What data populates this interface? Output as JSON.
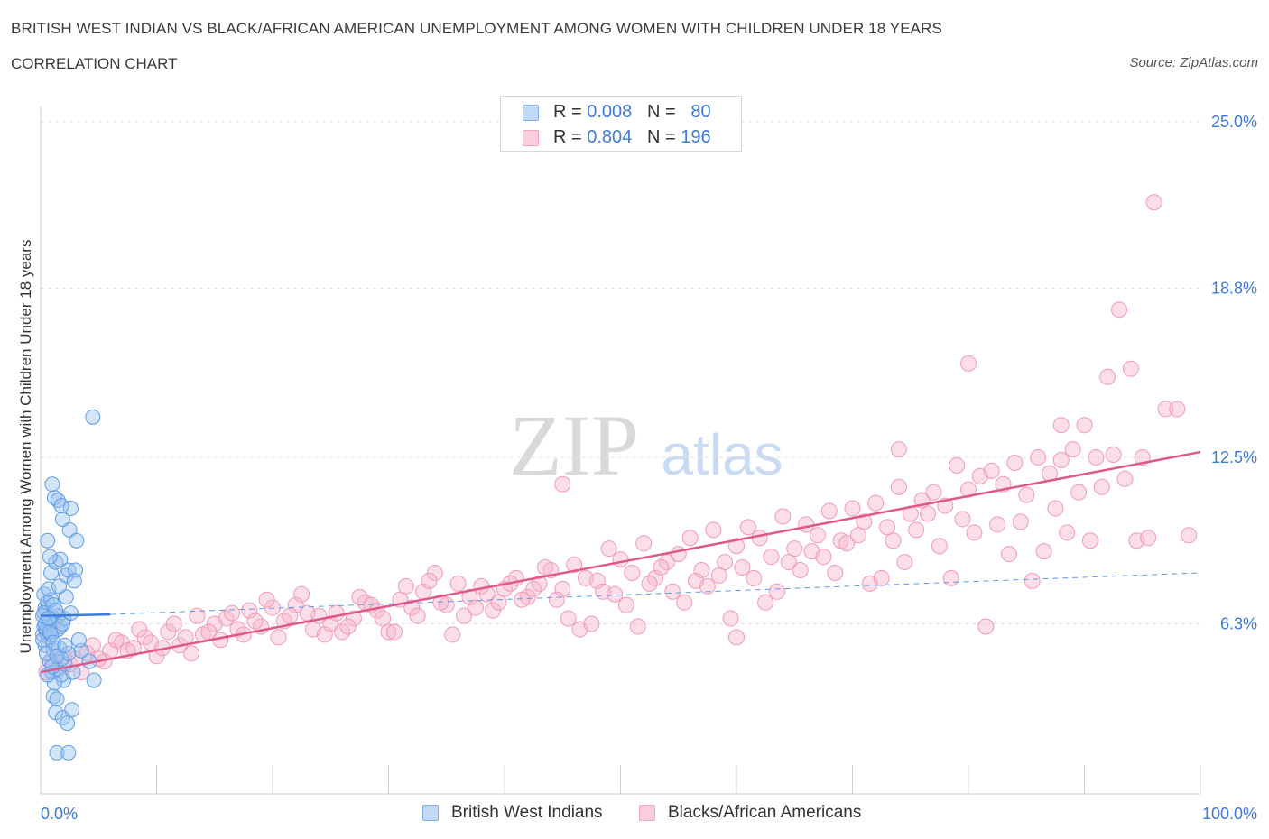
{
  "header": {
    "title": "BRITISH WEST INDIAN VS BLACK/AFRICAN AMERICAN UNEMPLOYMENT AMONG WOMEN WITH CHILDREN UNDER 18 YEARS",
    "subtitle": "CORRELATION CHART",
    "source": "Source: ZipAtlas.com"
  },
  "watermark": {
    "zip": "ZIP",
    "atlas": "atlas"
  },
  "legend": {
    "rows": [
      {
        "r_label": "R = ",
        "r_value": "0.008",
        "n_label": "N = ",
        "n_value": "80",
        "color": "#7fb0ec"
      },
      {
        "r_label": "R = ",
        "r_value": "0.804",
        "n_label": "N = ",
        "n_value": "196",
        "color": "#f4a3bf"
      }
    ]
  },
  "bottom_legend": [
    {
      "label": "British West Indians",
      "color": "#7fb0ec"
    },
    {
      "label": "Blacks/African Americans",
      "color": "#f4a3bf"
    }
  ],
  "chart_data": {
    "type": "scatter",
    "title": "BRITISH WEST INDIAN VS BLACK/AFRICAN AMERICAN UNEMPLOYMENT AMONG WOMEN WITH CHILDREN UNDER 18 YEARS",
    "xlabel": "",
    "ylabel": "Unemployment Among Women with Children Under 18 years",
    "xlim": [
      0,
      100
    ],
    "ylim": [
      0,
      25
    ],
    "x_tick_labels": [
      "0.0%",
      "100.0%"
    ],
    "y_ticks": [
      6.3,
      12.5,
      18.8,
      25.0
    ],
    "y_tick_labels": [
      "6.3%",
      "12.5%",
      "18.8%",
      "25.0%"
    ],
    "grid": true,
    "legend_position": "top-center",
    "colors": {
      "blue": "#3d7bd6",
      "pink": "#e0588a",
      "blue_fill": "#9cc3ef",
      "pink_fill": "#f6b5cb"
    },
    "series": [
      {
        "name": "British West Indians",
        "color": "#7fb0ec",
        "trend": {
          "x": [
            0,
            6
          ],
          "y": [
            6.6,
            6.65
          ],
          "dashed_extension_to": [
            100,
            8.2
          ]
        },
        "points": [
          [
            0.3,
            6.2
          ],
          [
            0.5,
            6.5
          ],
          [
            0.2,
            5.9
          ],
          [
            0.8,
            6.3
          ],
          [
            0.4,
            6.9
          ],
          [
            0.6,
            7.1
          ],
          [
            0.3,
            7.4
          ],
          [
            0.9,
            7.2
          ],
          [
            0.5,
            6.0
          ],
          [
            0.7,
            5.8
          ],
          [
            1.2,
            6.4
          ],
          [
            1.5,
            6.6
          ],
          [
            0.4,
            5.5
          ],
          [
            0.2,
            5.7
          ],
          [
            0.8,
            4.9
          ],
          [
            1.0,
            4.5
          ],
          [
            1.4,
            4.6
          ],
          [
            2.0,
            4.2
          ],
          [
            1.8,
            4.4
          ],
          [
            1.1,
            5.3
          ],
          [
            1.6,
            5.4
          ],
          [
            0.9,
            8.2
          ],
          [
            1.3,
            8.6
          ],
          [
            2.2,
            8.1
          ],
          [
            1.7,
            8.7
          ],
          [
            2.4,
            8.3
          ],
          [
            3.0,
            8.3
          ],
          [
            0.8,
            8.8
          ],
          [
            0.6,
            9.4
          ],
          [
            2.5,
            9.8
          ],
          [
            3.1,
            9.4
          ],
          [
            1.9,
            10.2
          ],
          [
            1.2,
            11.0
          ],
          [
            2.6,
            10.6
          ],
          [
            1.0,
            11.5
          ],
          [
            1.5,
            10.9
          ],
          [
            1.8,
            10.7
          ],
          [
            4.5,
            14.0
          ],
          [
            1.1,
            3.6
          ],
          [
            1.4,
            3.5
          ],
          [
            2.7,
            3.1
          ],
          [
            1.3,
            3.0
          ],
          [
            1.9,
            2.8
          ],
          [
            2.3,
            2.6
          ],
          [
            1.4,
            1.5
          ],
          [
            2.4,
            1.5
          ],
          [
            0.5,
            6.1
          ],
          [
            0.9,
            6.4
          ],
          [
            1.7,
            6.2
          ],
          [
            2.0,
            6.5
          ],
          [
            0.3,
            6.7
          ],
          [
            1.1,
            7.0
          ],
          [
            0.7,
            7.6
          ],
          [
            1.5,
            6.1
          ],
          [
            2.1,
            4.8
          ],
          [
            2.8,
            4.5
          ],
          [
            3.5,
            5.3
          ],
          [
            4.2,
            4.9
          ],
          [
            4.6,
            4.2
          ],
          [
            1.2,
            4.1
          ],
          [
            0.6,
            4.4
          ],
          [
            1.8,
            5.0
          ],
          [
            0.4,
            6.3
          ],
          [
            0.9,
            5.9
          ],
          [
            1.3,
            6.8
          ],
          [
            2.2,
            7.3
          ],
          [
            2.9,
            7.9
          ],
          [
            1.6,
            7.7
          ],
          [
            0.2,
            6.6
          ],
          [
            0.8,
            6.0
          ],
          [
            3.3,
            5.7
          ],
          [
            1.1,
            5.6
          ],
          [
            2.4,
            5.2
          ],
          [
            1.0,
            4.7
          ],
          [
            0.5,
            5.2
          ],
          [
            1.9,
            6.3
          ],
          [
            2.6,
            6.7
          ],
          [
            0.7,
            6.5
          ],
          [
            1.4,
            5.1
          ],
          [
            2.1,
            5.5
          ]
        ]
      },
      {
        "name": "Blacks/African Americans",
        "color": "#f4a3bf",
        "trend": {
          "x": [
            0,
            100
          ],
          "y": [
            4.5,
            12.7
          ]
        },
        "points": [
          [
            0.5,
            4.5
          ],
          [
            1.5,
            4.6
          ],
          [
            2.5,
            4.8
          ],
          [
            3.0,
            5.0
          ],
          [
            4.0,
            5.2
          ],
          [
            5.5,
            4.9
          ],
          [
            6.0,
            5.3
          ],
          [
            7.0,
            5.6
          ],
          [
            8.0,
            5.4
          ],
          [
            9.0,
            5.8
          ],
          [
            10.0,
            5.1
          ],
          [
            11.0,
            6.0
          ],
          [
            12.0,
            5.5
          ],
          [
            13.5,
            6.6
          ],
          [
            14.0,
            5.9
          ],
          [
            15.0,
            6.3
          ],
          [
            16.0,
            6.5
          ],
          [
            17.0,
            6.1
          ],
          [
            18.0,
            6.8
          ],
          [
            19.0,
            6.2
          ],
          [
            20.0,
            6.9
          ],
          [
            21.0,
            6.4
          ],
          [
            22.0,
            7.0
          ],
          [
            23.0,
            6.7
          ],
          [
            24.0,
            6.6
          ],
          [
            25.0,
            6.3
          ],
          [
            26.0,
            6.0
          ],
          [
            27.0,
            6.5
          ],
          [
            28.0,
            7.1
          ],
          [
            29.0,
            6.8
          ],
          [
            30.0,
            6.0
          ],
          [
            31.0,
            7.2
          ],
          [
            32.0,
            6.9
          ],
          [
            33.0,
            7.5
          ],
          [
            34.0,
            8.2
          ],
          [
            35.0,
            7.0
          ],
          [
            36.0,
            7.8
          ],
          [
            37.0,
            7.3
          ],
          [
            38.0,
            7.7
          ],
          [
            39.0,
            6.8
          ],
          [
            40.0,
            7.6
          ],
          [
            41.0,
            8.0
          ],
          [
            42.0,
            7.3
          ],
          [
            43.0,
            7.8
          ],
          [
            44.0,
            8.3
          ],
          [
            45.0,
            7.6
          ],
          [
            46.0,
            8.5
          ],
          [
            47.0,
            8.0
          ],
          [
            48.0,
            7.9
          ],
          [
            49.0,
            9.1
          ],
          [
            50.0,
            8.7
          ],
          [
            51.0,
            8.2
          ],
          [
            52.0,
            9.3
          ],
          [
            53.0,
            8.0
          ],
          [
            54.0,
            8.6
          ],
          [
            55.0,
            8.9
          ],
          [
            56.0,
            9.5
          ],
          [
            57.0,
            8.3
          ],
          [
            58.0,
            9.8
          ],
          [
            59.0,
            8.6
          ],
          [
            60.0,
            9.2
          ],
          [
            61.0,
            9.9
          ],
          [
            62.0,
            9.5
          ],
          [
            63.0,
            8.8
          ],
          [
            64.0,
            10.3
          ],
          [
            65.0,
            9.1
          ],
          [
            66.0,
            10.0
          ],
          [
            67.0,
            9.6
          ],
          [
            68.0,
            10.5
          ],
          [
            69.0,
            9.4
          ],
          [
            70.0,
            10.6
          ],
          [
            71.0,
            10.1
          ],
          [
            72.0,
            10.8
          ],
          [
            73.0,
            9.9
          ],
          [
            74.0,
            11.4
          ],
          [
            75.0,
            10.4
          ],
          [
            76.0,
            10.9
          ],
          [
            77.0,
            11.2
          ],
          [
            78.0,
            10.7
          ],
          [
            79.0,
            12.2
          ],
          [
            80.0,
            11.3
          ],
          [
            81.0,
            11.8
          ],
          [
            82.0,
            12.0
          ],
          [
            83.0,
            11.5
          ],
          [
            84.0,
            12.3
          ],
          [
            85.0,
            11.1
          ],
          [
            86.0,
            12.5
          ],
          [
            87.0,
            11.9
          ],
          [
            88.0,
            12.4
          ],
          [
            89.0,
            12.8
          ],
          [
            90.0,
            13.7
          ],
          [
            91.0,
            12.5
          ],
          [
            92.0,
            15.5
          ],
          [
            93.0,
            18.0
          ],
          [
            94.0,
            15.8
          ],
          [
            95.0,
            12.5
          ],
          [
            96.0,
            22.0
          ],
          [
            97.0,
            14.3
          ],
          [
            98.0,
            14.3
          ],
          [
            99.0,
            9.6
          ],
          [
            1.0,
            4.9
          ],
          [
            2.0,
            5.1
          ],
          [
            3.5,
            4.5
          ],
          [
            4.5,
            5.5
          ],
          [
            5.0,
            5.0
          ],
          [
            6.5,
            5.7
          ],
          [
            7.5,
            5.3
          ],
          [
            8.5,
            6.1
          ],
          [
            9.5,
            5.6
          ],
          [
            10.5,
            5.4
          ],
          [
            11.5,
            6.3
          ],
          [
            12.5,
            5.8
          ],
          [
            13.0,
            5.2
          ],
          [
            14.5,
            6.0
          ],
          [
            15.5,
            5.7
          ],
          [
            16.5,
            6.7
          ],
          [
            17.5,
            5.9
          ],
          [
            18.5,
            6.4
          ],
          [
            19.5,
            7.2
          ],
          [
            20.5,
            5.8
          ],
          [
            21.5,
            6.6
          ],
          [
            22.5,
            7.4
          ],
          [
            23.5,
            6.1
          ],
          [
            24.5,
            5.9
          ],
          [
            25.5,
            6.7
          ],
          [
            26.5,
            6.2
          ],
          [
            27.5,
            7.3
          ],
          [
            28.5,
            7.0
          ],
          [
            29.5,
            6.5
          ],
          [
            30.5,
            6.0
          ],
          [
            31.5,
            7.7
          ],
          [
            32.5,
            6.6
          ],
          [
            33.5,
            7.9
          ],
          [
            34.5,
            7.1
          ],
          [
            35.5,
            5.9
          ],
          [
            36.5,
            6.6
          ],
          [
            37.5,
            6.9
          ],
          [
            38.5,
            7.4
          ],
          [
            39.5,
            7.1
          ],
          [
            40.5,
            7.8
          ],
          [
            41.5,
            7.2
          ],
          [
            42.5,
            7.6
          ],
          [
            43.5,
            8.4
          ],
          [
            44.5,
            7.2
          ],
          [
            45.5,
            6.5
          ],
          [
            46.5,
            6.1
          ],
          [
            47.5,
            6.3
          ],
          [
            48.5,
            7.5
          ],
          [
            49.5,
            7.4
          ],
          [
            50.5,
            7.0
          ],
          [
            51.5,
            6.2
          ],
          [
            52.5,
            7.8
          ],
          [
            53.5,
            8.4
          ],
          [
            54.5,
            7.5
          ],
          [
            55.5,
            7.1
          ],
          [
            56.5,
            7.9
          ],
          [
            57.5,
            7.7
          ],
          [
            58.5,
            8.1
          ],
          [
            59.5,
            6.5
          ],
          [
            60.5,
            8.4
          ],
          [
            61.5,
            8.0
          ],
          [
            62.5,
            7.1
          ],
          [
            63.5,
            7.5
          ],
          [
            64.5,
            8.6
          ],
          [
            65.5,
            8.3
          ],
          [
            66.5,
            9.0
          ],
          [
            67.5,
            8.8
          ],
          [
            68.5,
            8.2
          ],
          [
            69.5,
            9.3
          ],
          [
            70.5,
            9.6
          ],
          [
            71.5,
            7.8
          ],
          [
            72.5,
            8.0
          ],
          [
            73.5,
            9.4
          ],
          [
            74.5,
            8.6
          ],
          [
            75.5,
            9.8
          ],
          [
            76.5,
            10.4
          ],
          [
            77.5,
            9.2
          ],
          [
            78.5,
            8.0
          ],
          [
            79.5,
            10.2
          ],
          [
            80.5,
            9.7
          ],
          [
            81.5,
            6.2
          ],
          [
            82.5,
            10.0
          ],
          [
            83.5,
            8.9
          ],
          [
            84.5,
            10.1
          ],
          [
            85.5,
            7.9
          ],
          [
            86.5,
            9.0
          ],
          [
            87.5,
            10.6
          ],
          [
            88.5,
            9.7
          ],
          [
            89.5,
            11.2
          ],
          [
            90.5,
            9.4
          ],
          [
            91.5,
            11.4
          ],
          [
            92.5,
            12.6
          ],
          [
            93.5,
            11.7
          ],
          [
            94.5,
            9.4
          ],
          [
            95.5,
            9.5
          ],
          [
            60.0,
            5.8
          ],
          [
            45.0,
            11.5
          ],
          [
            74.0,
            12.8
          ],
          [
            88.0,
            13.7
          ],
          [
            80.0,
            16.0
          ]
        ]
      }
    ]
  }
}
